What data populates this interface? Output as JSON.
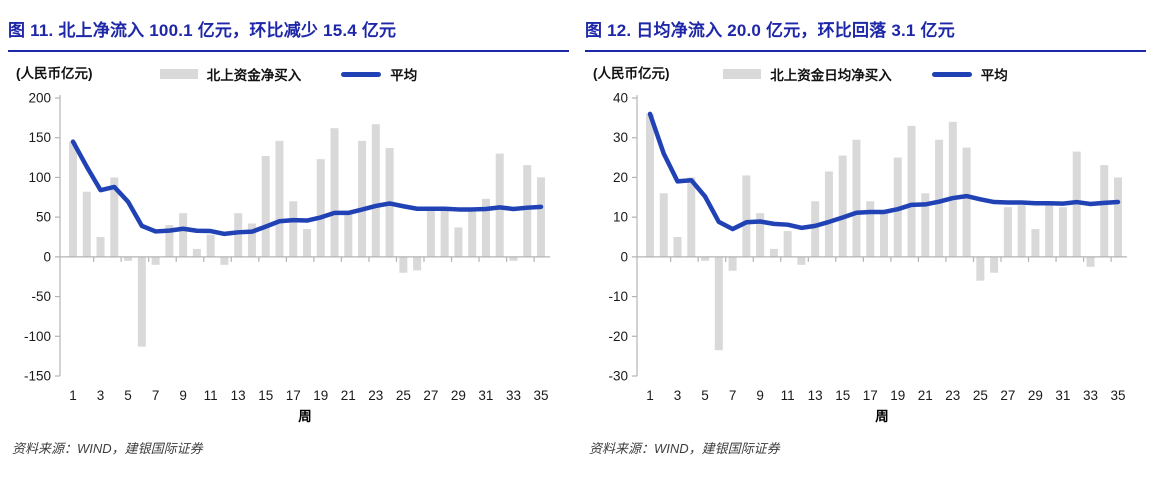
{
  "colors": {
    "title_blue": "#1e27a8",
    "line_blue": "#2042b4",
    "bar_gray": "#d9d9d9",
    "axis_gray": "#b3b3b3",
    "tick_text": "#1a1a1a",
    "footer_gray": "#3d3d3d"
  },
  "panels": [
    {
      "title": "图 11. 北上净流入 100.1 亿元，环比减少 15.4 亿元",
      "unit_label": "(人民币亿元)",
      "source": "资料来源：WIND，建银国际证券"
    },
    {
      "title": "图 12. 日均净流入 20.0 亿元，环比回落 3.1 亿元",
      "unit_label": "(人民币亿元)",
      "source": "资料来源：WIND，建银国际证券"
    }
  ],
  "chart_data": [
    {
      "type": "bar+line",
      "title": "图 11. 北上净流入 100.1 亿元，环比减少 15.4 亿元",
      "unit_label": "(人民币亿元)",
      "xlabel": "周",
      "categories": [
        1,
        2,
        3,
        4,
        5,
        6,
        7,
        8,
        9,
        10,
        11,
        12,
        13,
        14,
        15,
        16,
        17,
        18,
        19,
        20,
        21,
        22,
        23,
        24,
        25,
        26,
        27,
        28,
        29,
        30,
        31,
        32,
        33,
        34,
        35
      ],
      "xticks": [
        1,
        3,
        5,
        7,
        9,
        11,
        13,
        15,
        17,
        19,
        21,
        23,
        25,
        27,
        29,
        31,
        33,
        35
      ],
      "ylim": [
        -150,
        200
      ],
      "yticks": [
        200,
        150,
        100,
        50,
        0,
        -50,
        -100,
        -150
      ],
      "grid": false,
      "legend_position": "top",
      "series": [
        {
          "name": "北上资金净买入",
          "type": "bar",
          "color": "#d9d9d9",
          "values": [
            145,
            82,
            25,
            100,
            -5,
            -113,
            -10,
            40,
            55,
            10,
            28,
            -10,
            55,
            42,
            127,
            146,
            70,
            35,
            123,
            162,
            55,
            146,
            167,
            137,
            -20,
            -17,
            58,
            62,
            37,
            60,
            73,
            130,
            -5,
            115.5,
            100.1
          ]
        },
        {
          "name": "平均",
          "type": "line",
          "color": "#2042b4",
          "values": [
            145.0,
            113.5,
            84.0,
            88.0,
            69.4,
            39.0,
            32.0,
            33.0,
            35.4,
            32.9,
            32.5,
            28.9,
            30.9,
            31.7,
            38.1,
            44.8,
            46.3,
            45.7,
            49.7,
            55.4,
            55.3,
            59.5,
            64.1,
            67.2,
            63.7,
            60.6,
            60.5,
            60.5,
            59.7,
            59.7,
            60.2,
            62.3,
            60.3,
            61.9,
            63.0
          ]
        }
      ]
    },
    {
      "type": "bar+line",
      "title": "图 12. 日均净流入 20.0 亿元，环比回落 3.1 亿元",
      "unit_label": "(人民币亿元)",
      "xlabel": "周",
      "categories": [
        1,
        2,
        3,
        4,
        5,
        6,
        7,
        8,
        9,
        10,
        11,
        12,
        13,
        14,
        15,
        16,
        17,
        18,
        19,
        20,
        21,
        22,
        23,
        24,
        25,
        26,
        27,
        28,
        29,
        30,
        31,
        32,
        33,
        34,
        35
      ],
      "xticks": [
        1,
        3,
        5,
        7,
        9,
        11,
        13,
        15,
        17,
        19,
        21,
        23,
        25,
        27,
        29,
        31,
        33,
        35
      ],
      "ylim": [
        -30,
        40
      ],
      "yticks": [
        40,
        30,
        20,
        10,
        0,
        -10,
        -20,
        -30
      ],
      "grid": false,
      "legend_position": "top",
      "series": [
        {
          "name": "北上资金日均净买入",
          "type": "bar",
          "color": "#d9d9d9",
          "values": [
            36,
            16,
            5,
            20,
            -1,
            -23.5,
            -3.5,
            20.5,
            11,
            2,
            6.5,
            -2,
            14,
            21.5,
            25.5,
            29.5,
            14,
            11.5,
            25,
            33,
            16,
            29.5,
            34,
            27.5,
            -6,
            -4,
            12.5,
            13,
            7,
            13,
            12.5,
            26.5,
            -2.5,
            23.1,
            20.0
          ]
        },
        {
          "name": "平均",
          "type": "line",
          "color": "#2042b4",
          "values": [
            36.0,
            26.0,
            19.0,
            19.3,
            15.2,
            8.8,
            7.0,
            8.7,
            8.9,
            8.3,
            8.1,
            7.3,
            7.8,
            8.8,
            9.9,
            11.1,
            11.3,
            11.3,
            12.0,
            13.1,
            13.2,
            13.9,
            14.8,
            15.3,
            14.5,
            13.8,
            13.7,
            13.7,
            13.5,
            13.5,
            13.4,
            13.8,
            13.3,
            13.6,
            13.8
          ]
        }
      ]
    }
  ]
}
